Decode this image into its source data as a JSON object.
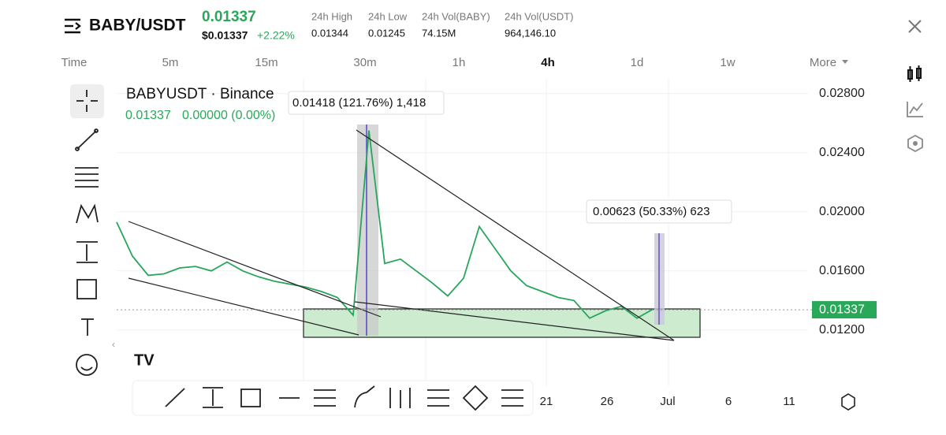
{
  "header": {
    "pair": "BABY/USDT",
    "price": "0.01337",
    "usd_price": "$0.01337",
    "change": "+2.22%",
    "stats": [
      {
        "label": "24h High",
        "value": "0.01344"
      },
      {
        "label": "24h Low",
        "value": "0.01245"
      },
      {
        "label": "24h Vol(BABY)",
        "value": "74.15M"
      },
      {
        "label": "24h Vol(USDT)",
        "value": "964,146.10"
      }
    ]
  },
  "timeframes": [
    "Time",
    "5m",
    "15m",
    "30m",
    "1h",
    "4h",
    "1d",
    "1w",
    "More"
  ],
  "chart": {
    "symbol": "BABYUSDT · Binance",
    "quote_price": "0.01337",
    "quote_change": "0.00000 (0.00%)",
    "ylim": [
      0.0082,
      0.029
    ],
    "yticks": [
      {
        "value": 0.028,
        "label": "0.02800"
      },
      {
        "value": 0.024,
        "label": "0.02400"
      },
      {
        "value": 0.02,
        "label": "0.02000"
      },
      {
        "value": 0.016,
        "label": "0.01600"
      },
      {
        "value": 0.012,
        "label": "0.01200"
      }
    ],
    "last_price": 0.01337,
    "prices": [
      0.0193,
      0.017,
      0.0157,
      0.0158,
      0.0162,
      0.0163,
      0.016,
      0.0166,
      0.016,
      0.0156,
      0.0153,
      0.0151,
      0.0149,
      0.0146,
      0.0142,
      0.013,
      0.0255,
      0.0165,
      0.0168,
      0.016,
      0.0152,
      0.0143,
      0.0155,
      0.019,
      0.0175,
      0.016,
      0.015,
      0.0146,
      0.0142,
      0.014,
      0.0128,
      0.0133,
      0.0136,
      0.0128,
      0.0134
    ],
    "measures": [
      "0.01418 (121.76%) 1,418",
      "0.00623 (50.33%) 623"
    ],
    "x_labels": [
      "21",
      "26",
      "Jul",
      "6",
      "11"
    ]
  }
}
